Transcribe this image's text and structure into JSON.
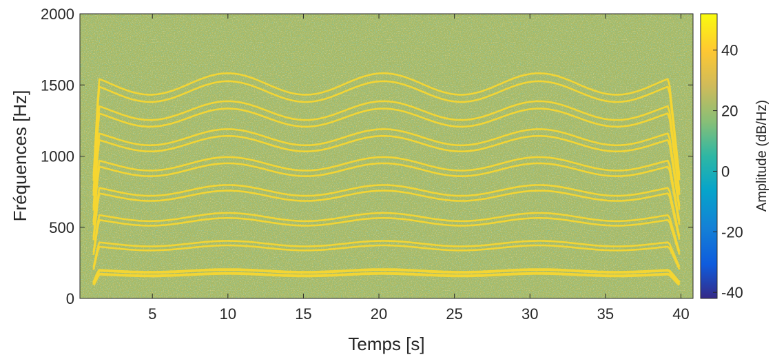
{
  "chart_data": {
    "type": "heatmap",
    "title": "",
    "xlabel": "Temps [s]",
    "ylabel": "Fréquences [Hz]",
    "xlim": [
      0.2,
      40.8
    ],
    "ylim": [
      0,
      2000
    ],
    "xticks": [
      5,
      10,
      15,
      20,
      25,
      30,
      35,
      40
    ],
    "yticks": [
      0,
      500,
      1000,
      1500,
      2000
    ],
    "colorbar": {
      "label": "Amplitude (dB/Hz)",
      "range": [
        -42,
        52
      ],
      "ticks": [
        -40,
        -20,
        0,
        20,
        40
      ],
      "colormap": "parula",
      "position": "right"
    },
    "background": {
      "level_db": 20,
      "description_colors": [
        "#8db86a",
        "#c9b84c",
        "#2ba6a4"
      ]
    },
    "signal": {
      "start_s": 1.1,
      "end_s": 39.9,
      "vibrato_period_s": 10.3,
      "vibrato_peak_times_s": [
        10,
        20.5,
        30.8
      ],
      "harmonic_center_hz": [
        180,
        370,
        555,
        740,
        925,
        1110,
        1295,
        1480
      ],
      "harmonic_pair_offset_hz": 13,
      "relative_vibrato_depth": 0.05,
      "line_color": "#f7d630"
    },
    "grid": false
  }
}
